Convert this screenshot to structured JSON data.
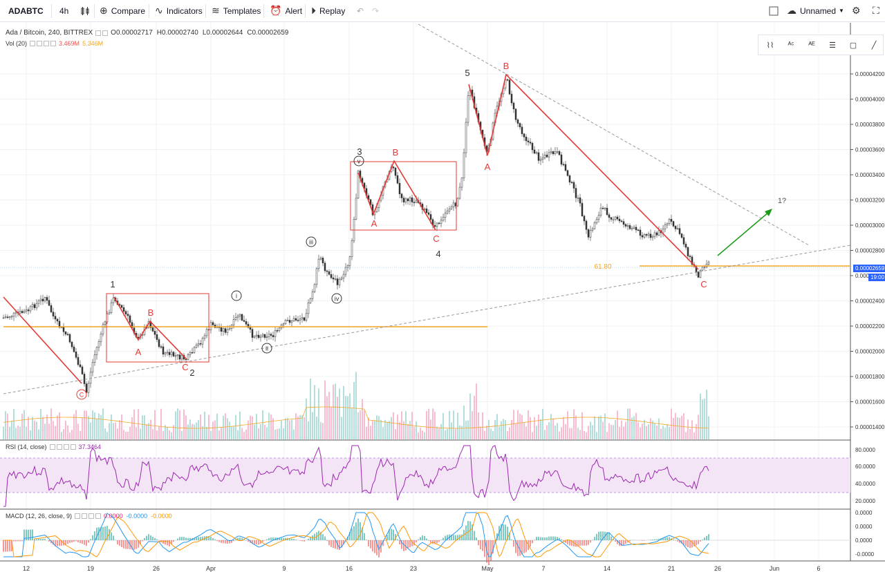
{
  "toolbar": {
    "symbol": "ADABTC",
    "interval": "4h",
    "compare_label": "Compare",
    "indicators_label": "Indicators",
    "templates_label": "Templates",
    "alert_label": "Alert",
    "replay_label": "Replay",
    "layout_name": "Unnamed"
  },
  "legend": {
    "title": "Ada / Bitcoin, 240, BITTREX",
    "open": "O0.00002717",
    "high": "H0.00002740",
    "low": "L0.00002644",
    "close": "C0.00002659",
    "vol_label": "Vol (20)",
    "vol_val1": "3.469M",
    "vol_val2": "5.346M",
    "rsi_label": "RSI (14, close)",
    "rsi_val": "37.3464",
    "macd_label": "MACD (12, 26, close, 9)",
    "macd_v1": "0.0000",
    "macd_v2": "-0.0000",
    "macd_v3": "-0.0000"
  },
  "price_axis": [
    "0.00004200",
    "0.00004000",
    "0.00003800",
    "0.00003600",
    "0.00003400",
    "0.00003200",
    "0.00003000",
    "0.00002800",
    "0.00002600",
    "0.00002400",
    "0.00002200",
    "0.00002000",
    "0.00001800",
    "0.00001600",
    "0.00001400"
  ],
  "current_price": "0.00002659",
  "current_time": "19:00",
  "rsi_axis": [
    "80.0000",
    "60.0000",
    "40.0000",
    "20.0000"
  ],
  "macd_axis": [
    "0.0000",
    "0.0000",
    "0.0000",
    "-0.0000"
  ],
  "time_axis": [
    "12",
    "19",
    "26",
    "Apr",
    "9",
    "16",
    "23",
    "May",
    "7",
    "14",
    "21",
    "26",
    "Jun",
    "6"
  ],
  "fib_label": "61.80",
  "wave_labels": {
    "w1": "1",
    "w2": "2",
    "w3": "3",
    "w4": "4",
    "w5": "5",
    "w1q": "1?",
    "i": "i",
    "ii": "ii",
    "iii": "iii",
    "iv": "iv",
    "v": "v",
    "A": "A",
    "B": "B",
    "C": "C"
  },
  "colors": {
    "up": "#26a69a",
    "down": "#ef5350",
    "wave": "#e53935",
    "fib": "#f5a623",
    "rsi": "#9c27b0",
    "rsi_band": "#f3e5f5",
    "macd": "#2196f3",
    "signal": "#ff9800",
    "accent": "#2962ff"
  }
}
